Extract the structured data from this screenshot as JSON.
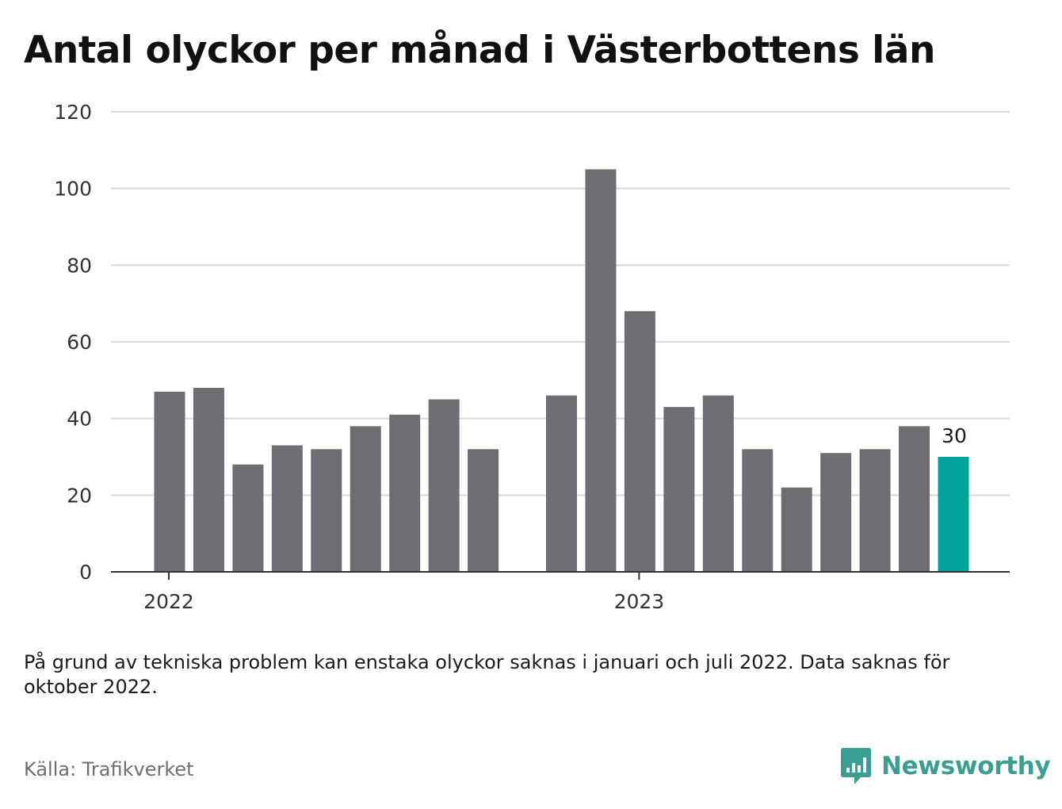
{
  "title": "Antal olyckor per månad i Västerbottens län",
  "note": "På grund av tekniska problem kan enstaka olyckor saknas i januari och juli 2022. Data saknas för oktober 2022.",
  "source": "Källa: Trafikverket",
  "brand": {
    "name": "Newsworthy",
    "icon": "newsworthy-logo-icon",
    "color": "#3a9e93"
  },
  "colors": {
    "bar": "#6e6d73",
    "highlight": "#00a398",
    "grid": "#d9d9d9",
    "axis": "#333333"
  },
  "chart_data": {
    "type": "bar",
    "title": "Antal olyckor per månad i Västerbottens län",
    "xlabel": "",
    "ylabel": "",
    "ylim": [
      0,
      120
    ],
    "yticks": [
      0,
      20,
      40,
      60,
      80,
      100,
      120
    ],
    "grid": true,
    "legend": "none",
    "x_axis_labels": [
      {
        "label": "2022",
        "at": "2022-01"
      },
      {
        "label": "2023",
        "at": "2023-01"
      }
    ],
    "categories": [
      "2022-01",
      "2022-02",
      "2022-03",
      "2022-04",
      "2022-05",
      "2022-06",
      "2022-07",
      "2022-08",
      "2022-09",
      "2022-10",
      "2022-11",
      "2022-12",
      "2023-01",
      "2023-02",
      "2023-03",
      "2023-04",
      "2023-05",
      "2023-06",
      "2023-07",
      "2023-08",
      "2023-09",
      "2023-10",
      "2023-11"
    ],
    "values": [
      47,
      48,
      28,
      33,
      32,
      38,
      41,
      45,
      32,
      null,
      46,
      105,
      68,
      43,
      46,
      32,
      22,
      31,
      32,
      38,
      30,
      null,
      null
    ],
    "highlight": {
      "category": "2023-09",
      "value": 30,
      "label": "30"
    }
  }
}
